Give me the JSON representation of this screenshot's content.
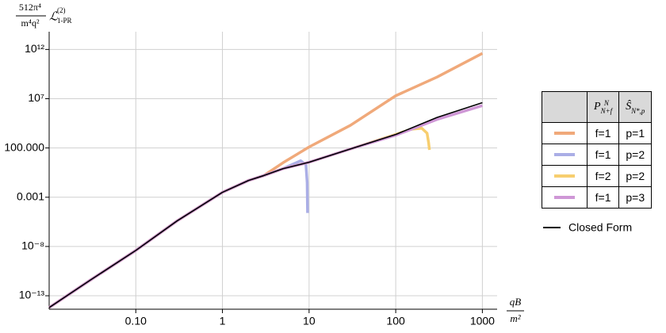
{
  "chart_data": {
    "type": "line",
    "y_label": {
      "numerator": "512π⁴",
      "denominator": "m⁴q²",
      "symbol": "ℒ",
      "symbol_sup": "(2)",
      "symbol_sub": "1-PR"
    },
    "x_label": {
      "numerator": "qB",
      "denominator": "m²"
    },
    "log_x": true,
    "log_y": true,
    "grid": true,
    "xlim": [
      0.01,
      1480
    ],
    "ylim": [
      4.3e-15,
      63000000000000.0
    ],
    "xticks": [
      {
        "value": 0.1,
        "label": "0.10"
      },
      1,
      10,
      100,
      1000
    ],
    "yticks": [
      {
        "value": 1000000000000.0,
        "label": "10¹²"
      },
      {
        "value": 10000000.0,
        "label": "10⁷"
      },
      {
        "value": 100,
        "label": "100.000"
      },
      0.001,
      {
        "value": 1e-08,
        "label": "10⁻⁸"
      },
      {
        "value": 1e-13,
        "label": "10⁻¹³"
      }
    ],
    "legend_headers": [
      {
        "base": "P",
        "sup": "N",
        "sub": "N+f"
      },
      {
        "base": "Ŝ",
        "sub": "N*,p"
      }
    ],
    "series": [
      {
        "labels": [
          "f=1",
          "p=1"
        ],
        "color": "#f0a97a",
        "x": [
          0.01,
          0.03,
          0.1,
          0.3,
          1,
          2,
          3,
          5,
          10,
          30,
          100,
          300,
          1000
        ],
        "values": [
          6.31e-15,
          3.98e-12,
          3.98e-09,
          3.98e-06,
          0.00316,
          0.0501,
          0.158,
          3.16,
          126,
          19950,
          20000000.0,
          1580000000.0,
          398000000000.0
        ]
      },
      {
        "labels": [
          "f=1",
          "p=2"
        ],
        "color": "#aaaee6",
        "x": [
          0.01,
          0.03,
          0.1,
          0.3,
          1,
          2,
          3,
          5,
          8,
          9.2,
          9.5,
          9.6
        ],
        "values": [
          6.31e-15,
          3.98e-12,
          3.98e-09,
          3.98e-06,
          0.00316,
          0.0501,
          0.158,
          0.794,
          5.01,
          2.0,
          0.0316,
          2.51e-05
        ]
      },
      {
        "labels": [
          "f=2",
          "p=2"
        ],
        "color": "#f7ce6f",
        "x": [
          0.01,
          0.03,
          0.1,
          0.3,
          1,
          2,
          3,
          5,
          10,
          30,
          100,
          150,
          200,
          230,
          240,
          245
        ],
        "values": [
          6.31e-15,
          3.98e-12,
          3.98e-09,
          3.98e-06,
          0.00316,
          0.0501,
          0.158,
          0.794,
          3.55,
          79.4,
          2344,
          7943,
          10000,
          3162,
          316,
          63.1
        ]
      },
      {
        "labels": [
          "f=1",
          "p=3"
        ],
        "color": "#cf97d6",
        "x": [
          0.01,
          0.03,
          0.1,
          0.3,
          1,
          2,
          3,
          5,
          10,
          30,
          100,
          300,
          1000
        ],
        "values": [
          6.31e-15,
          3.98e-12,
          3.98e-09,
          3.98e-06,
          0.00316,
          0.0501,
          0.158,
          0.794,
          3.55,
          79.4,
          1995,
          79430,
          2000000.0
        ]
      },
      {
        "name": "Closed Form",
        "color": "#000000",
        "x": [
          0.01,
          0.03,
          0.1,
          0.3,
          1,
          2,
          3,
          5,
          10,
          30,
          100,
          300,
          1000
        ],
        "values": [
          6.31e-15,
          3.98e-12,
          3.98e-09,
          3.98e-06,
          0.00316,
          0.0501,
          0.158,
          0.794,
          3.55,
          79.4,
          2344,
          125900,
          3981000
        ]
      }
    ]
  }
}
